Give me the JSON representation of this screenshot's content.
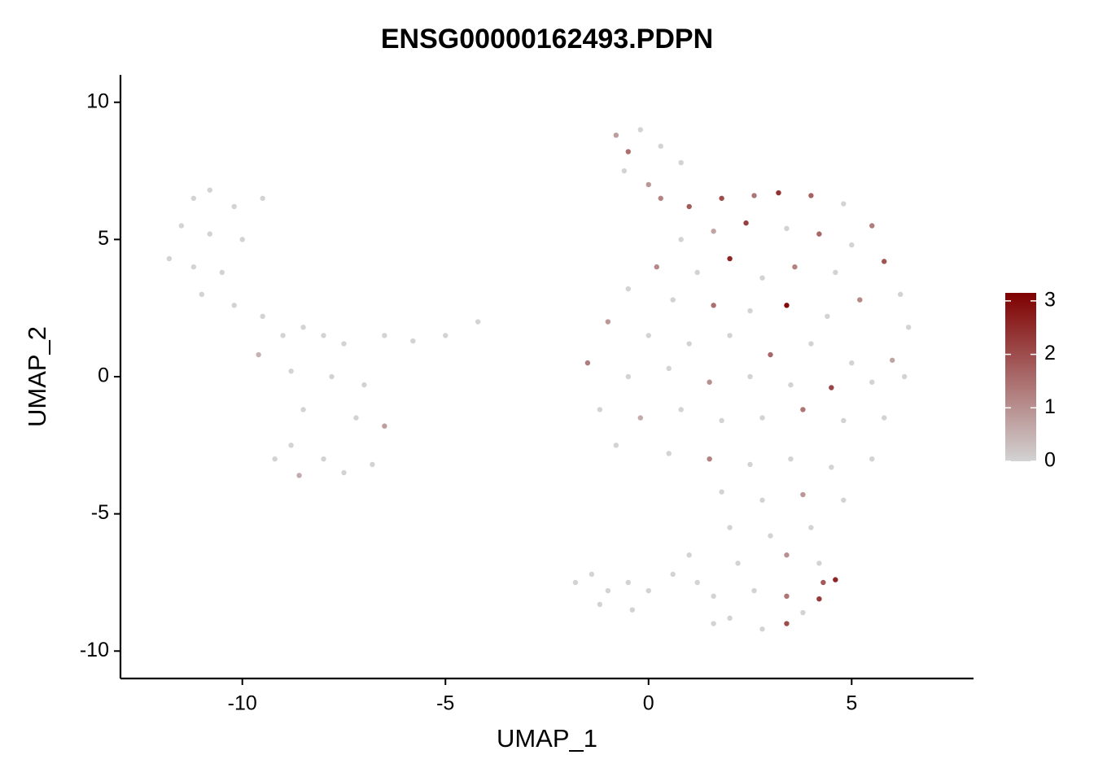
{
  "chart_data": {
    "type": "scatter",
    "title": "ENSG00000162493.PDPN",
    "x_label": "UMAP_1",
    "y_label": "UMAP_2",
    "xlim": [
      -13,
      8
    ],
    "ylim": [
      -11,
      11
    ],
    "xticks": [
      -10,
      -5,
      0,
      5
    ],
    "yticks": [
      -10,
      -5,
      0,
      5,
      10
    ],
    "grid": false,
    "legend_position": "right",
    "color_low": "#d3d3d3",
    "color_high": "#7f0000",
    "color_lim": [
      0,
      3.15
    ],
    "color_ticks": [
      0,
      1,
      2,
      3
    ],
    "x": [
      -11.2,
      -10.8,
      -10.2,
      -9.5,
      -11.5,
      -10.8,
      -10,
      -11.8,
      -11.2,
      -10.5,
      -11,
      -10.2,
      -9.5,
      -9,
      -8.5,
      -8,
      -7.5,
      -6.5,
      -5.8,
      -5,
      -4.2,
      -8.8,
      -7.8,
      -7,
      -8.5,
      -7.2,
      -6.5,
      -8.8,
      -8,
      -7.5,
      -8.6,
      -9.2,
      -6.8,
      -9.6,
      -0.8,
      -0.5,
      -0.2,
      0.3,
      0.8,
      -0.6,
      0,
      0.3,
      1,
      1.8,
      2.6,
      3.2,
      4,
      4.8,
      5.5,
      0.8,
      1.6,
      2.4,
      3.4,
      4.2,
      5,
      5.8,
      0.2,
      1.2,
      2,
      2.8,
      3.6,
      4.6,
      6.2,
      -0.5,
      0.6,
      1.6,
      2.5,
      3.4,
      4.4,
      5.2,
      6.4,
      -1,
      0,
      1,
      2,
      3,
      4,
      5,
      6,
      -1.5,
      -0.5,
      0.5,
      1.5,
      2.5,
      3.5,
      4.5,
      5.5,
      6.3,
      -1.2,
      -0.2,
      0.8,
      1.8,
      2.8,
      3.8,
      4.8,
      5.8,
      -0.8,
      0.5,
      1.5,
      2.5,
      3.5,
      4.5,
      5.5,
      1.8,
      2.8,
      3.8,
      4.8,
      2,
      3,
      4,
      1,
      2.2,
      3.4,
      4.2,
      -1.8,
      -1.4,
      -1,
      -0.5,
      0,
      0.6,
      1.2,
      -1.2,
      -0.4,
      1.6,
      2.6,
      3.4,
      4.2,
      4.6,
      4.3,
      2,
      2.8,
      3.4,
      1.6,
      3.8
    ],
    "y": [
      6.5,
      6.8,
      6.2,
      6.5,
      5.5,
      5.2,
      5,
      4.3,
      4,
      3.8,
      3,
      2.6,
      2.2,
      1.5,
      1.8,
      1.5,
      1.2,
      1.5,
      1.3,
      1.5,
      2,
      0.2,
      0,
      -0.3,
      -1.2,
      -1.5,
      -1.8,
      -2.5,
      -3,
      -3.5,
      -3.6,
      -3,
      -3.2,
      0.8,
      8.8,
      8.2,
      9,
      8.4,
      7.8,
      7.5,
      7,
      6.5,
      6.2,
      6.5,
      6.6,
      6.7,
      6.6,
      6.3,
      5.5,
      5,
      5.3,
      5.6,
      5.4,
      5.2,
      4.8,
      4.2,
      4,
      3.8,
      4.3,
      3.6,
      4,
      3.8,
      3,
      3.2,
      2.8,
      2.6,
      2.4,
      2.6,
      2.2,
      2.8,
      1.8,
      2,
      1.5,
      1.2,
      1.5,
      0.8,
      1.2,
      0.5,
      0.6,
      0.5,
      0,
      0.3,
      -0.2,
      0,
      -0.3,
      -0.4,
      -0.2,
      0,
      -1.2,
      -1.5,
      -1.2,
      -1.6,
      -1.5,
      -1.2,
      -1.6,
      -1.5,
      -2.5,
      -2.8,
      -3,
      -3.2,
      -3,
      -3.3,
      -3,
      -4.2,
      -4.5,
      -4.3,
      -4.5,
      -5.5,
      -5.8,
      -5.5,
      -6.5,
      -6.8,
      -6.5,
      -6.8,
      -7.5,
      -7.2,
      -7.8,
      -7.5,
      -7.8,
      -7.2,
      -7.5,
      -8.3,
      -8.5,
      -8,
      -7.8,
      -8,
      -8.1,
      -7.4,
      -7.5,
      -8.8,
      -9.2,
      -9,
      -9,
      -8.6
    ],
    "values": [
      0,
      0,
      0,
      0,
      0,
      0,
      0,
      0,
      0,
      0,
      0,
      0,
      0,
      0,
      0,
      0,
      0,
      0,
      0,
      0,
      0,
      0,
      0,
      0,
      0,
      0,
      0.8,
      0,
      0,
      0,
      0.6,
      0,
      0,
      0.5,
      0.8,
      1.5,
      0,
      0,
      0,
      0,
      0.9,
      1.2,
      1.8,
      2,
      1.4,
      2.4,
      1.7,
      0,
      1.3,
      0,
      0.7,
      2.2,
      0,
      1.6,
      0,
      1.9,
      1.1,
      0,
      2.6,
      0,
      1.2,
      0,
      0,
      0,
      0,
      1.5,
      0,
      3,
      0,
      1.1,
      0,
      0.9,
      0,
      0,
      0,
      1.6,
      0,
      0,
      0.7,
      1.3,
      0,
      0,
      1,
      0,
      0,
      2.1,
      0,
      0,
      0,
      0.6,
      0,
      0,
      0,
      1.4,
      0,
      0,
      0,
      0,
      1.2,
      0,
      0,
      0,
      0,
      0,
      0,
      0.9,
      0,
      0,
      0,
      0,
      0,
      0,
      1,
      0,
      0,
      0,
      0,
      0,
      0,
      0,
      0,
      0,
      0,
      0,
      0,
      1.4,
      2.3,
      2.6,
      1.8,
      0,
      0,
      2,
      0,
      0
    ]
  }
}
